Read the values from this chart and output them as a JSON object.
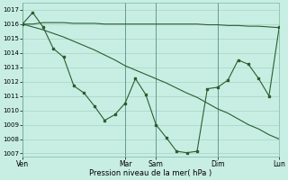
{
  "bg_color": "#c8eee4",
  "grid_color": "#a8d4c4",
  "line_color": "#2a5e30",
  "xlabel": "Pression niveau de la mer( hPa )",
  "ylim": [
    1006.8,
    1017.5
  ],
  "yticks": [
    1007,
    1008,
    1009,
    1010,
    1011,
    1012,
    1013,
    1014,
    1015,
    1016,
    1017
  ],
  "xtick_labels": [
    "Ven",
    "Mar",
    "Sam",
    "Dim",
    "Lun"
  ],
  "xtick_positions": [
    0,
    10,
    13,
    19,
    25
  ],
  "xlim": [
    0,
    25
  ],
  "line1_x": [
    0,
    1,
    2,
    3,
    4,
    5,
    6,
    7,
    8,
    9,
    10,
    11,
    12,
    13,
    14,
    15,
    16,
    17,
    18,
    19,
    20,
    21,
    22,
    23,
    24,
    25
  ],
  "line1_y": [
    1016.0,
    1016.0,
    1016.1,
    1016.1,
    1016.1,
    1016.05,
    1016.05,
    1016.05,
    1016.0,
    1016.0,
    1016.0,
    1016.0,
    1016.0,
    1016.0,
    1016.0,
    1016.0,
    1016.0,
    1016.0,
    1015.95,
    1015.95,
    1015.9,
    1015.9,
    1015.85,
    1015.85,
    1015.8,
    1015.75
  ],
  "line2_x": [
    0,
    1,
    2,
    3,
    4,
    5,
    6,
    7,
    8,
    9,
    10,
    11,
    12,
    13,
    14,
    15,
    16,
    17,
    18,
    19,
    20,
    21,
    22,
    23,
    24,
    25
  ],
  "line2_y": [
    1016.0,
    1015.8,
    1015.6,
    1015.35,
    1015.1,
    1014.8,
    1014.5,
    1014.2,
    1013.85,
    1013.5,
    1013.1,
    1012.8,
    1012.5,
    1012.2,
    1011.9,
    1011.55,
    1011.2,
    1010.9,
    1010.5,
    1010.1,
    1009.8,
    1009.4,
    1009.0,
    1008.7,
    1008.3,
    1008.0
  ],
  "line3_x": [
    0,
    1,
    2,
    3,
    4,
    5,
    6,
    7,
    8,
    9,
    10,
    11,
    12,
    13,
    14,
    15,
    16,
    17,
    18,
    19,
    20,
    21,
    22,
    23,
    24,
    25
  ],
  "line3_y": [
    1016.0,
    1016.8,
    1015.8,
    1014.3,
    1013.7,
    1011.7,
    1011.2,
    1010.3,
    1009.3,
    1009.7,
    1010.5,
    1012.2,
    1011.1,
    1009.0,
    1008.1,
    1007.15,
    1007.05,
    1007.15,
    1011.5,
    1011.6,
    1012.1,
    1013.5,
    1013.2,
    1012.2,
    1011.0,
    1015.8
  ]
}
